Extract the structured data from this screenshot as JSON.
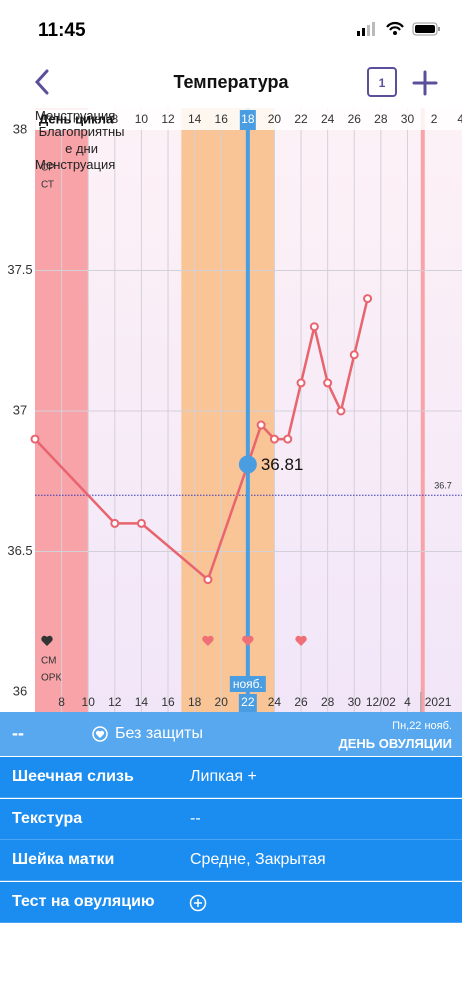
{
  "status_bar": {
    "time": "11:45"
  },
  "header": {
    "title": "Температура",
    "calendar_day": "1"
  },
  "chart_data": {
    "type": "line",
    "x_label": "День цикла",
    "xlim": [
      2,
      34.1
    ],
    "ylim": [
      36,
      38
    ],
    "yticks": [
      36,
      36.5,
      37,
      37.5,
      38
    ],
    "top_xticks": [
      8,
      10,
      12,
      14,
      16,
      18,
      20,
      22,
      24,
      26,
      28,
      30,
      {
        "value": 32,
        "label": "2"
      },
      {
        "value": 34,
        "label": "4"
      }
    ],
    "xticks": [
      {
        "value": 4,
        "label": "8"
      },
      {
        "value": 6,
        "label": "10"
      },
      {
        "value": 8,
        "label": "12"
      },
      {
        "value": 10,
        "label": "14"
      },
      {
        "value": 12,
        "label": "16"
      },
      {
        "value": 14,
        "label": "18"
      },
      {
        "value": 16,
        "label": "20"
      },
      {
        "value": 18,
        "label": "22"
      },
      {
        "value": 20,
        "label": "24"
      },
      {
        "value": 22,
        "label": "26"
      },
      {
        "value": 24,
        "label": "28"
      },
      {
        "value": 26,
        "label": "30"
      },
      {
        "value": 28,
        "label": "12/02"
      },
      {
        "value": 30,
        "label": "4"
      }
    ],
    "month_label": "нояб.",
    "year_marker": {
      "value": 31,
      "label": "2021"
    },
    "x": [
      2,
      8,
      10,
      15,
      18,
      19,
      20,
      21,
      22,
      23,
      24,
      25,
      26,
      27
    ],
    "values": [
      36.9,
      36.6,
      36.6,
      36.4,
      36.81,
      36.95,
      36.9,
      36.9,
      37.1,
      37.3,
      37.1,
      37.0,
      37.2,
      37.4
    ],
    "color": "#e8646e",
    "cursor_x": 18,
    "reference_line": 36.7,
    "regions": [
      {
        "label": "Менструация",
        "from": 2,
        "to": 6,
        "color": "#f7a3a8"
      },
      {
        "label": "Благоприятные дни",
        "from": 13,
        "to": 20,
        "color": "#f9c597"
      },
      {
        "label": "Менструация",
        "from": 31,
        "to": 31.3,
        "color": "#f7a3a8"
      }
    ],
    "row_labels_top": [
      "СР",
      "СТ"
    ],
    "row_labels_bottom": [
      "СМ",
      "ОРК"
    ],
    "intercourse_days": [
      15,
      18,
      22
    ],
    "grid": true
  },
  "bottom_panel": {
    "summary": "--",
    "protection": "Без защиты",
    "date": "Пн,22 нояб.",
    "day_type": "ДЕНЬ ОВУЛЯЦИИ",
    "rows": [
      {
        "label": "Шеечная слизь",
        "value": "Липкая +"
      },
      {
        "label": "Текстура",
        "value": "--"
      },
      {
        "label": "Шейка матки",
        "value": "Средне, Закрытая"
      },
      {
        "label": "Тест на овуляцию"
      }
    ]
  }
}
